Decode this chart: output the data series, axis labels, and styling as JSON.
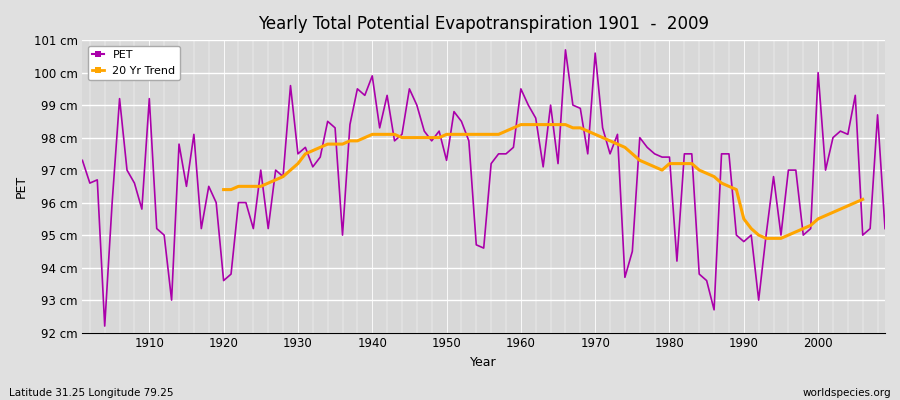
{
  "title": "Yearly Total Potential Evapotranspiration 1901  -  2009",
  "xlabel": "Year",
  "ylabel": "PET",
  "subtitle_left": "Latitude 31.25 Longitude 79.25",
  "subtitle_right": "worldspecies.org",
  "pet_color": "#AA00AA",
  "trend_color": "#FFA500",
  "background_color": "#e0e0e0",
  "plot_bg_color": "#d8d8d8",
  "grid_color": "#ffffff",
  "ylim_min": 92,
  "ylim_max": 101,
  "xlim_min": 1901,
  "xlim_max": 2009,
  "years": [
    1901,
    1902,
    1903,
    1904,
    1905,
    1906,
    1907,
    1908,
    1909,
    1910,
    1911,
    1912,
    1913,
    1914,
    1915,
    1916,
    1917,
    1918,
    1919,
    1920,
    1921,
    1922,
    1923,
    1924,
    1925,
    1926,
    1927,
    1928,
    1929,
    1930,
    1931,
    1932,
    1933,
    1934,
    1935,
    1936,
    1937,
    1938,
    1939,
    1940,
    1941,
    1942,
    1943,
    1944,
    1945,
    1946,
    1947,
    1948,
    1949,
    1950,
    1951,
    1952,
    1953,
    1954,
    1955,
    1956,
    1957,
    1958,
    1959,
    1960,
    1961,
    1962,
    1963,
    1964,
    1965,
    1966,
    1967,
    1968,
    1969,
    1970,
    1971,
    1972,
    1973,
    1974,
    1975,
    1976,
    1977,
    1978,
    1979,
    1980,
    1981,
    1982,
    1983,
    1984,
    1985,
    1986,
    1987,
    1988,
    1989,
    1990,
    1991,
    1992,
    1993,
    1994,
    1995,
    1996,
    1997,
    1998,
    1999,
    2000,
    2001,
    2002,
    2003,
    2004,
    2005,
    2006,
    2007,
    2008,
    2009
  ],
  "pet_values": [
    97.3,
    96.6,
    96.7,
    92.2,
    96.0,
    99.2,
    97.0,
    96.6,
    95.8,
    99.2,
    95.2,
    95.0,
    93.0,
    97.8,
    96.5,
    98.1,
    95.2,
    96.5,
    96.0,
    93.6,
    93.8,
    96.0,
    96.0,
    95.2,
    97.0,
    95.2,
    97.0,
    96.8,
    99.6,
    97.5,
    97.7,
    97.1,
    97.4,
    98.5,
    98.3,
    95.0,
    98.4,
    99.5,
    99.3,
    99.9,
    98.3,
    99.3,
    97.9,
    98.1,
    99.5,
    99.0,
    98.2,
    97.9,
    98.2,
    97.3,
    98.8,
    98.5,
    97.9,
    94.7,
    94.6,
    97.2,
    97.5,
    97.5,
    97.7,
    99.5,
    99.0,
    98.6,
    97.1,
    99.0,
    97.2,
    100.7,
    99.0,
    98.9,
    97.5,
    100.6,
    98.3,
    97.5,
    98.1,
    93.7,
    94.5,
    98.0,
    97.7,
    97.5,
    97.4,
    97.4,
    94.2,
    97.5,
    97.5,
    93.8,
    93.6,
    92.7,
    97.5,
    97.5,
    95.0,
    94.8,
    95.0,
    93.0,
    95.0,
    96.8,
    95.0,
    97.0,
    97.0,
    95.0,
    95.2,
    100.0,
    97.0,
    98.0,
    98.2,
    98.1,
    99.3,
    95.0,
    95.2,
    98.7,
    95.2
  ],
  "trend_values": [
    null,
    null,
    null,
    null,
    null,
    null,
    null,
    null,
    null,
    null,
    null,
    null,
    null,
    null,
    null,
    null,
    null,
    null,
    null,
    96.4,
    96.4,
    96.5,
    96.5,
    96.5,
    96.5,
    96.6,
    96.7,
    96.8,
    97.0,
    97.2,
    97.5,
    97.6,
    97.7,
    97.8,
    97.8,
    97.8,
    97.9,
    97.9,
    98.0,
    98.1,
    98.1,
    98.1,
    98.1,
    98.0,
    98.0,
    98.0,
    98.0,
    98.0,
    98.0,
    98.1,
    98.1,
    98.1,
    98.1,
    98.1,
    98.1,
    98.1,
    98.1,
    98.2,
    98.3,
    98.4,
    98.4,
    98.4,
    98.4,
    98.4,
    98.4,
    98.4,
    98.3,
    98.3,
    98.2,
    98.1,
    98.0,
    97.9,
    97.8,
    97.7,
    97.5,
    97.3,
    97.2,
    97.1,
    97.0,
    97.2,
    97.2,
    97.2,
    97.2,
    97.0,
    96.9,
    96.8,
    96.6,
    96.5,
    96.4,
    95.5,
    95.2,
    95.0,
    94.9,
    94.9,
    94.9,
    95.0,
    95.1,
    95.2,
    95.3,
    95.5,
    95.6,
    95.7,
    95.8,
    95.9,
    96.0,
    96.1,
    null,
    null,
    null
  ]
}
